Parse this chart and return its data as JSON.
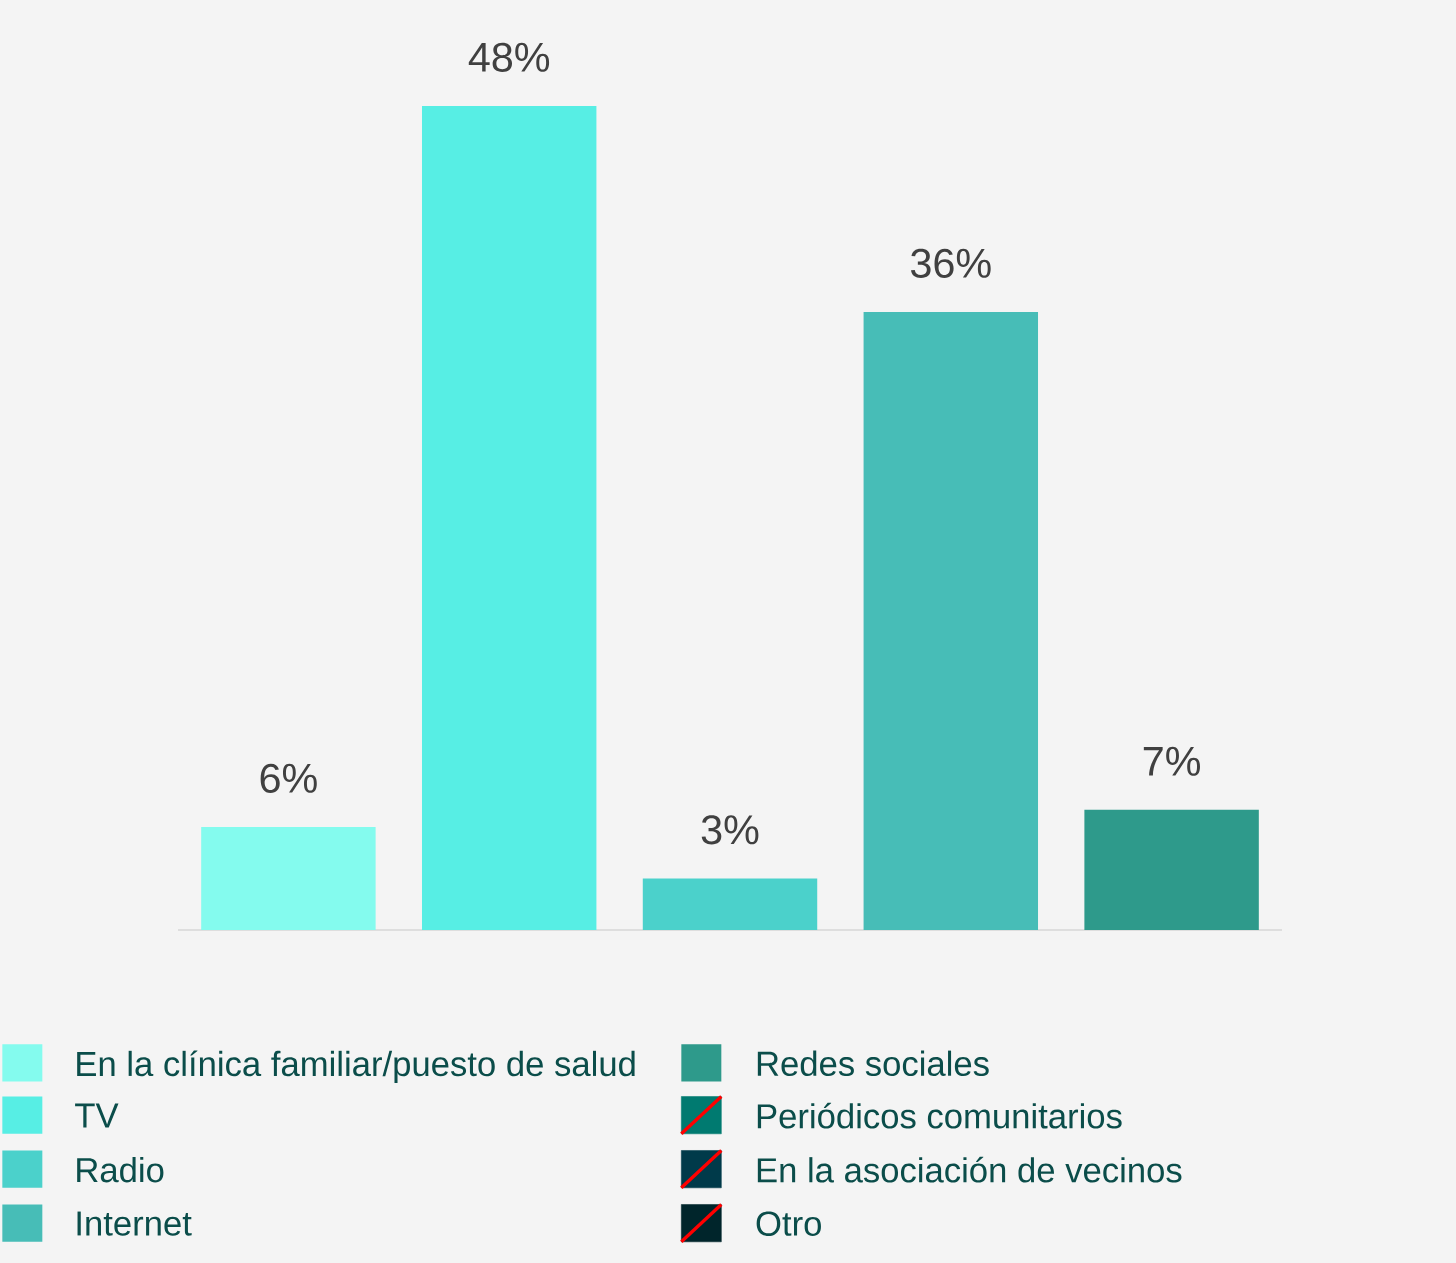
{
  "chart_data": {
    "type": "bar",
    "categories": [
      null
    ],
    "series": [
      {
        "name": "En la clínica familiar/puesto de salud",
        "color": "#84fbee",
        "values": [
          6
        ],
        "value_labels": [
          "6%"
        ]
      },
      {
        "name": "TV",
        "color": "#57eee4",
        "values": [
          48
        ],
        "value_labels": [
          "48%"
        ]
      },
      {
        "name": "Radio",
        "color": "#4bd1cb",
        "values": [
          3
        ],
        "value_labels": [
          "3%"
        ]
      },
      {
        "name": "Internet",
        "color": "#47bdb7",
        "values": [
          36
        ],
        "value_labels": [
          "36%"
        ]
      },
      {
        "name": "Redes sociales",
        "color": "#2e9a8b",
        "values": [
          7
        ],
        "value_labels": [
          "7%"
        ]
      },
      {
        "name": "Periódicos comunitarios",
        "color": "#007a70",
        "values": [
          null
        ]
      },
      {
        "name": "En la asociación de vecinos",
        "color": "#003a4a",
        "values": [
          null
        ]
      },
      {
        "name": "Otro",
        "color": "#00252b",
        "values": [
          null
        ]
      }
    ],
    "legend": "bottom"
  }
}
